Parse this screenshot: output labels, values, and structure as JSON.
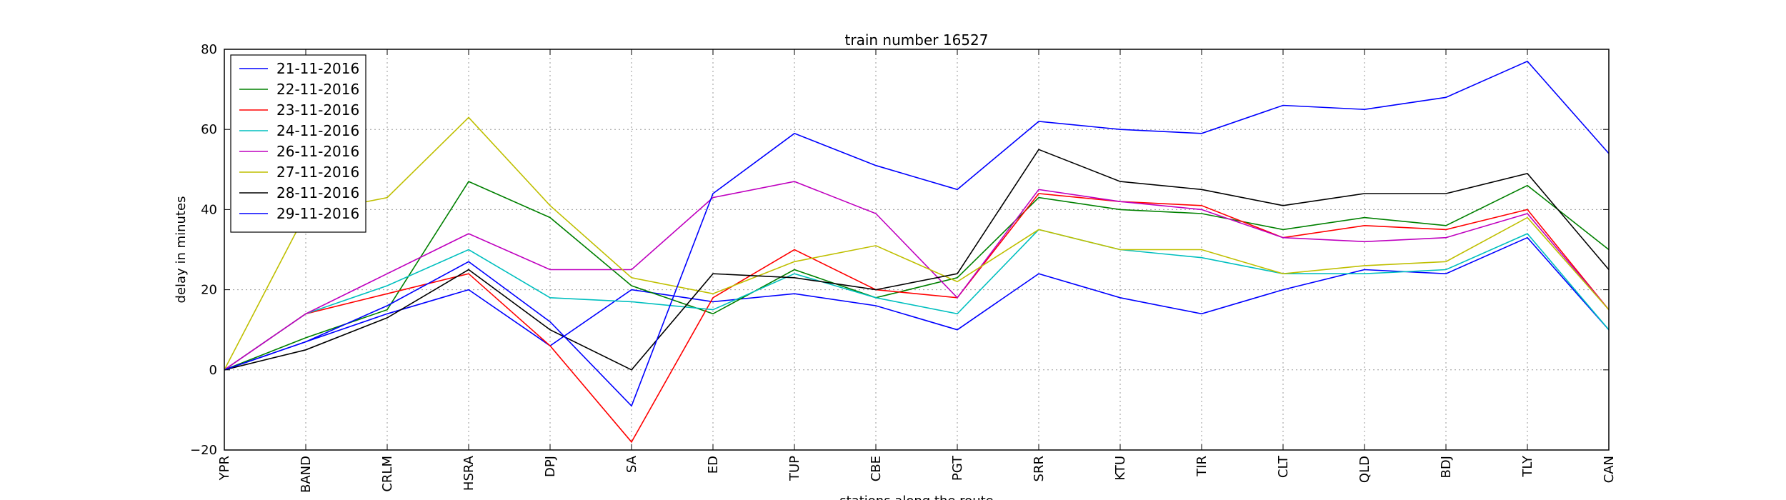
{
  "chart_data": {
    "type": "line",
    "title": "train number 16527",
    "xlabel": "stations along the route",
    "ylabel": "delay in minutes",
    "ylim": [
      -20,
      80
    ],
    "yticks": [
      -20,
      0,
      20,
      40,
      60,
      80
    ],
    "grid": true,
    "legend_position": "top-left",
    "categories": [
      "YPR",
      "BAND",
      "CRLM",
      "HSRA",
      "DPJ",
      "SA",
      "ED",
      "TUP",
      "CBE",
      "PGT",
      "SRR",
      "KTU",
      "TIR",
      "CLT",
      "QLD",
      "BDJ",
      "TLY",
      "CAN"
    ],
    "series": [
      {
        "name": "21-11-2016",
        "color": "#0000ff",
        "values": [
          0,
          7,
          14,
          20,
          6,
          20,
          17,
          19,
          16,
          10,
          24,
          18,
          14,
          20,
          25,
          24,
          33,
          10
        ]
      },
      {
        "name": "22-11-2016",
        "color": "#008000",
        "values": [
          0,
          8,
          15,
          47,
          38,
          21,
          14,
          25,
          18,
          23,
          43,
          40,
          39,
          35,
          38,
          36,
          46,
          30
        ]
      },
      {
        "name": "23-11-2016",
        "color": "#ff0000",
        "values": [
          0,
          14,
          19,
          24,
          6,
          -18,
          18,
          30,
          20,
          18,
          44,
          42,
          41,
          33,
          36,
          35,
          40,
          15
        ]
      },
      {
        "name": "24-11-2016",
        "color": "#00bfbf",
        "values": [
          0,
          14,
          21,
          30,
          18,
          17,
          15,
          24,
          18,
          14,
          35,
          30,
          28,
          24,
          24,
          25,
          34,
          10
        ]
      },
      {
        "name": "26-11-2016",
        "color": "#bf00bf",
        "values": [
          0,
          14,
          24,
          34,
          25,
          25,
          43,
          47,
          39,
          18,
          45,
          42,
          40,
          33,
          32,
          33,
          39,
          15
        ]
      },
      {
        "name": "27-11-2016",
        "color": "#bfbf00",
        "values": [
          0,
          39,
          43,
          63,
          41,
          23,
          19,
          27,
          31,
          22,
          35,
          30,
          30,
          24,
          26,
          27,
          38,
          15
        ]
      },
      {
        "name": "28-11-2016",
        "color": "#000000",
        "values": [
          0,
          5,
          13,
          25,
          10,
          0,
          24,
          23,
          20,
          24,
          55,
          47,
          45,
          41,
          44,
          44,
          49,
          25
        ]
      },
      {
        "name": "29-11-2016",
        "color": "#0000ff",
        "values": [
          0,
          7,
          16,
          27,
          12,
          -9,
          44,
          59,
          51,
          45,
          62,
          60,
          59,
          66,
          65,
          68,
          77,
          54
        ]
      }
    ]
  }
}
